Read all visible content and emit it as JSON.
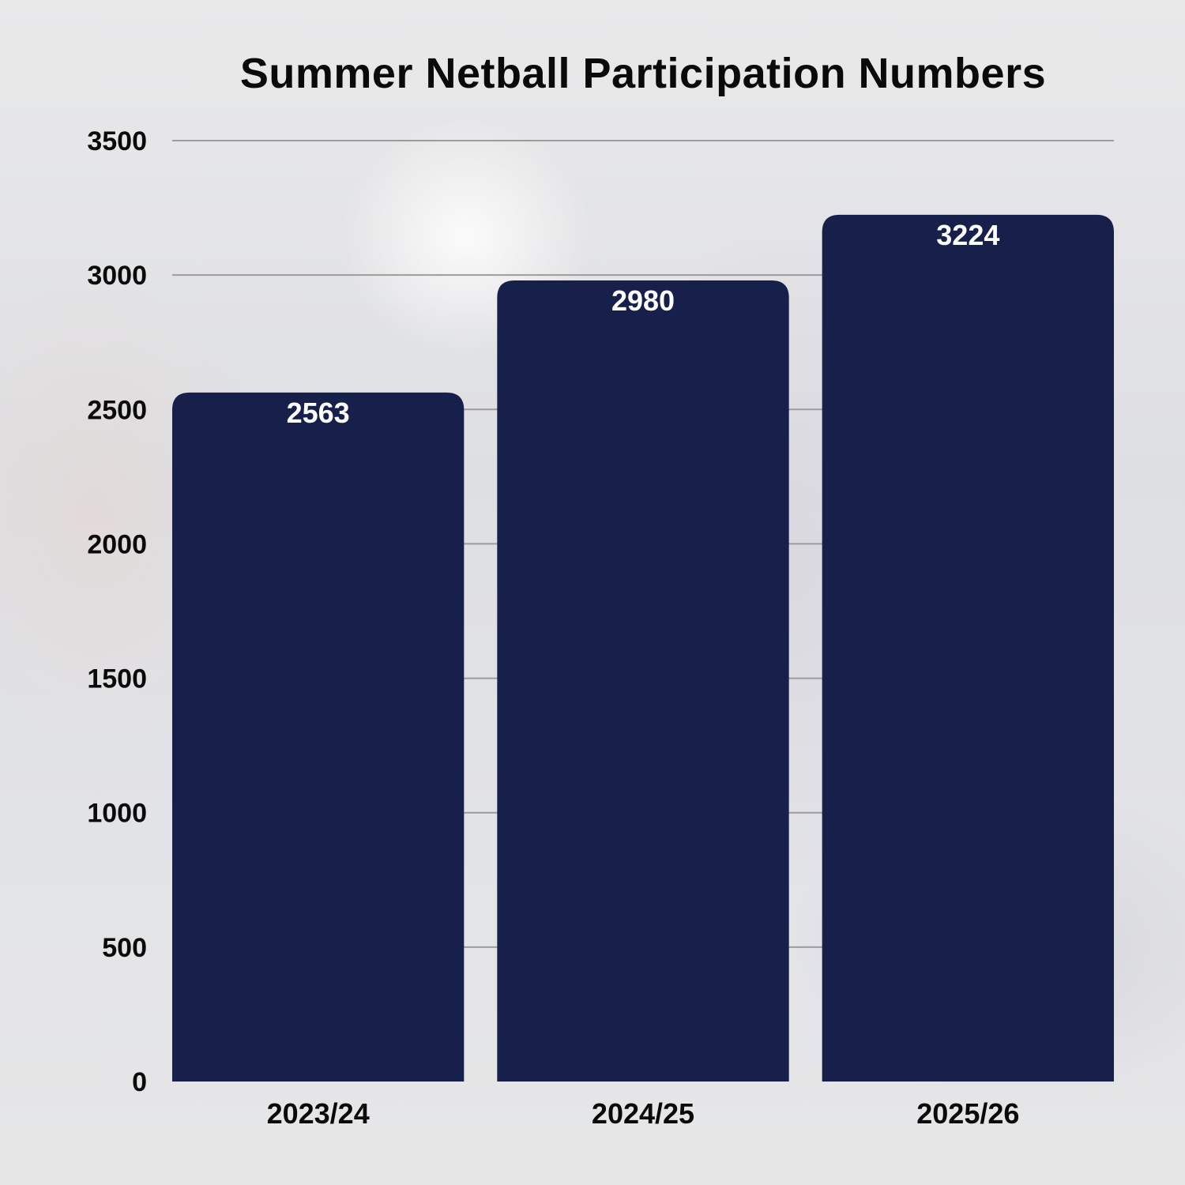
{
  "chart_data": {
    "type": "bar",
    "title": "Summer Netball Participation Numbers",
    "categories": [
      "2023/24",
      "2024/25",
      "2025/26"
    ],
    "values": [
      2563,
      2980,
      3224
    ],
    "data_labels": [
      "2563",
      "2980",
      "3224"
    ],
    "yticks": [
      0,
      500,
      1000,
      1500,
      2000,
      2500,
      3000,
      3500
    ],
    "ylim": [
      0,
      3500
    ],
    "xlabel": "",
    "ylabel": "",
    "grid": true,
    "bar_color": "#171f4b",
    "label_color": "#ffffff",
    "grid_color": "#9c9c9c"
  }
}
